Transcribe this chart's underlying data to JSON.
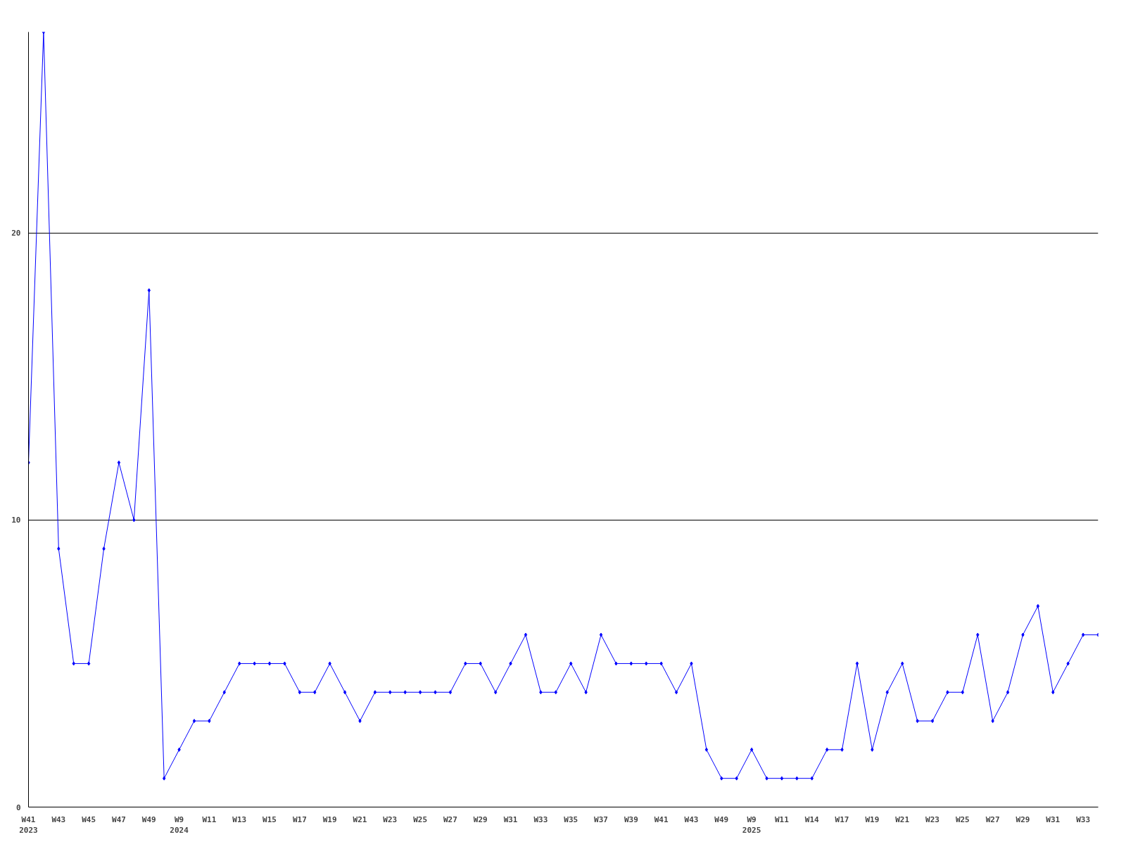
{
  "chart_data": {
    "type": "line",
    "categories": [
      "W41\n2023",
      null,
      "W43",
      null,
      "W45",
      null,
      "W47",
      null,
      "W49",
      null,
      "W9\n2024",
      null,
      "W11",
      null,
      "W13",
      null,
      "W15",
      null,
      "W17",
      null,
      "W19",
      null,
      "W21",
      null,
      "W23",
      null,
      "W25",
      null,
      "W27",
      null,
      "W29",
      null,
      "W31",
      null,
      "W33",
      null,
      "W35",
      null,
      "W37",
      null,
      "W39",
      null,
      "W41",
      null,
      "W43",
      null,
      "W49",
      null,
      "W9\n2025",
      null,
      "W11",
      null,
      "W14",
      null,
      "W17",
      null,
      "W19",
      null,
      "W21",
      null,
      "W23",
      null,
      "W25",
      null,
      "W27",
      null,
      "W29",
      null,
      "W31",
      null,
      "W33",
      null
    ],
    "series": [
      {
        "color": "#0000ff",
        "values": [
          12,
          27,
          9,
          5,
          5,
          9,
          12,
          10,
          18,
          1,
          2,
          3,
          3,
          4,
          5,
          5,
          5,
          5,
          4,
          4,
          5,
          4,
          3,
          4,
          4,
          4,
          4,
          4,
          4,
          5,
          5,
          4,
          5,
          6,
          4,
          4,
          5,
          4,
          6,
          5,
          5,
          5,
          5,
          4,
          5,
          2,
          1,
          1,
          2,
          1,
          1,
          1,
          1,
          2,
          2,
          5,
          2,
          4,
          5,
          3,
          3,
          4,
          4,
          6,
          3,
          4,
          6,
          7,
          4,
          5,
          6,
          6
        ]
      }
    ],
    "ylim": [
      0,
      27
    ],
    "yticks": [
      0,
      10,
      20
    ],
    "grid": "y",
    "marker": "diamond",
    "line_style": "solid"
  }
}
